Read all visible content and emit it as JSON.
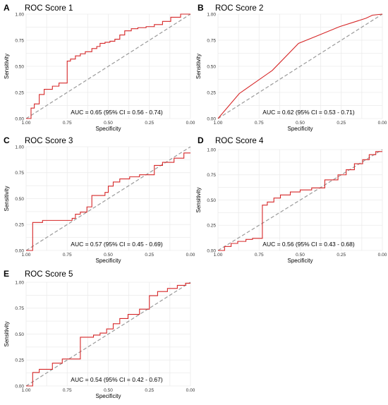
{
  "colors": {
    "roc": "#d62728",
    "diagonal": "#9a9a9a",
    "grid": "#ebebeb"
  },
  "chart_data": [
    {
      "type": "line",
      "letter": "A",
      "title": "ROC Score 1",
      "xlabel": "Specificity",
      "ylabel": "Sensitivity",
      "xlim": [
        1.0,
        0.0
      ],
      "ylim": [
        0.0,
        1.0
      ],
      "xticks": [
        "1.00",
        "0.75",
        "0.50",
        "0.25",
        "0.00"
      ],
      "yticks": [
        "0.00",
        "0.25",
        "0.50",
        "0.75",
        "1.00"
      ],
      "annotation": "AUC = 0.65 (95% CI = 0.56 - 0.74)",
      "grid": true,
      "diagonal": true,
      "curve_style": "step",
      "specificity": [
        1.0,
        0.97,
        0.97,
        0.95,
        0.95,
        0.92,
        0.92,
        0.89,
        0.89,
        0.84,
        0.84,
        0.8,
        0.8,
        0.75,
        0.75,
        0.73,
        0.73,
        0.7,
        0.7,
        0.67,
        0.67,
        0.64,
        0.64,
        0.6,
        0.6,
        0.57,
        0.57,
        0.55,
        0.55,
        0.52,
        0.52,
        0.49,
        0.49,
        0.46,
        0.46,
        0.43,
        0.43,
        0.4,
        0.4,
        0.36,
        0.36,
        0.32,
        0.32,
        0.27,
        0.27,
        0.22,
        0.22,
        0.17,
        0.17,
        0.12,
        0.12,
        0.06,
        0.06,
        0.0
      ],
      "sensitivity": [
        0.0,
        0.0,
        0.1,
        0.1,
        0.14,
        0.14,
        0.23,
        0.23,
        0.28,
        0.28,
        0.31,
        0.31,
        0.34,
        0.34,
        0.55,
        0.55,
        0.57,
        0.57,
        0.6,
        0.6,
        0.62,
        0.62,
        0.64,
        0.64,
        0.67,
        0.67,
        0.69,
        0.69,
        0.72,
        0.72,
        0.73,
        0.73,
        0.74,
        0.74,
        0.76,
        0.76,
        0.8,
        0.8,
        0.84,
        0.84,
        0.86,
        0.86,
        0.87,
        0.87,
        0.88,
        0.88,
        0.9,
        0.9,
        0.93,
        0.93,
        0.97,
        0.97,
        1.0,
        1.0
      ]
    },
    {
      "type": "line",
      "letter": "B",
      "title": "ROC Score 2",
      "xlabel": "Specificity",
      "ylabel": "Sensitivity",
      "xlim": [
        1.0,
        0.0
      ],
      "ylim": [
        0.0,
        1.0
      ],
      "xticks": [
        "1.00",
        "0.75",
        "0.50",
        "0.25",
        "0.00"
      ],
      "yticks": [
        "0.00",
        "0.25",
        "0.50",
        "0.75",
        "1.00"
      ],
      "annotation": "AUC = 0.62 (95% CI = 0.53 - 0.71)",
      "grid": true,
      "diagonal": true,
      "curve_style": "smooth",
      "specificity": [
        1.0,
        0.87,
        0.67,
        0.51,
        0.4,
        0.26,
        0.1,
        0.06,
        0.0
      ],
      "sensitivity": [
        0.0,
        0.24,
        0.46,
        0.72,
        0.79,
        0.88,
        0.96,
        0.99,
        1.0
      ]
    },
    {
      "type": "line",
      "letter": "C",
      "title": "ROC Score 3",
      "xlabel": "Specificity",
      "ylabel": "Sensitivity",
      "xlim": [
        1.0,
        0.0
      ],
      "ylim": [
        0.0,
        1.0
      ],
      "xticks": [
        "1.00",
        "0.75",
        "0.50",
        "0.25",
        "0.00"
      ],
      "yticks": [
        "0.00",
        "0.25",
        "0.50",
        "0.75",
        "1.00"
      ],
      "annotation": "AUC = 0.57 (95% CI = 0.45 - 0.69)",
      "grid": true,
      "diagonal": true,
      "curve_style": "step",
      "specificity": [
        1.0,
        0.96,
        0.96,
        0.9,
        0.9,
        0.72,
        0.72,
        0.7,
        0.7,
        0.67,
        0.67,
        0.63,
        0.63,
        0.6,
        0.6,
        0.52,
        0.52,
        0.5,
        0.5,
        0.47,
        0.47,
        0.43,
        0.43,
        0.37,
        0.37,
        0.31,
        0.31,
        0.22,
        0.22,
        0.17,
        0.17,
        0.1,
        0.1,
        0.04,
        0.04,
        0.0
      ],
      "sensitivity": [
        0.0,
        0.0,
        0.27,
        0.27,
        0.29,
        0.29,
        0.31,
        0.31,
        0.35,
        0.35,
        0.37,
        0.37,
        0.42,
        0.42,
        0.53,
        0.53,
        0.56,
        0.56,
        0.62,
        0.62,
        0.66,
        0.66,
        0.69,
        0.69,
        0.71,
        0.71,
        0.73,
        0.73,
        0.82,
        0.82,
        0.85,
        0.85,
        0.89,
        0.89,
        0.94,
        0.94
      ]
    },
    {
      "type": "line",
      "letter": "D",
      "title": "ROC Score 4",
      "xlabel": "Specificity",
      "ylabel": "Sensitivity",
      "xlim": [
        1.0,
        0.0
      ],
      "ylim": [
        0.0,
        1.0
      ],
      "xticks": [
        "1.00",
        "0.75",
        "0.50",
        "0.25",
        "0.00"
      ],
      "yticks": [
        "0.00",
        "0.25",
        "0.50",
        "0.75",
        "1.00"
      ],
      "annotation": "AUC = 0.56 (95% CI = 0.43 - 0.68)",
      "grid": true,
      "diagonal": true,
      "curve_style": "step",
      "specificity": [
        1.0,
        0.96,
        0.96,
        0.92,
        0.92,
        0.88,
        0.88,
        0.83,
        0.83,
        0.79,
        0.79,
        0.73,
        0.73,
        0.7,
        0.7,
        0.66,
        0.66,
        0.62,
        0.62,
        0.56,
        0.56,
        0.5,
        0.5,
        0.43,
        0.43,
        0.35,
        0.35,
        0.27,
        0.27,
        0.22,
        0.22,
        0.17,
        0.17,
        0.12,
        0.12,
        0.08,
        0.08,
        0.04,
        0.04,
        0.0
      ],
      "sensitivity": [
        0.0,
        0.0,
        0.04,
        0.04,
        0.07,
        0.07,
        0.09,
        0.09,
        0.11,
        0.11,
        0.12,
        0.12,
        0.45,
        0.45,
        0.48,
        0.48,
        0.52,
        0.52,
        0.55,
        0.55,
        0.58,
        0.58,
        0.6,
        0.6,
        0.62,
        0.62,
        0.7,
        0.7,
        0.75,
        0.75,
        0.8,
        0.8,
        0.86,
        0.86,
        0.9,
        0.9,
        0.95,
        0.95,
        0.98,
        0.98
      ]
    },
    {
      "type": "line",
      "letter": "E",
      "title": "ROC Score 5",
      "xlabel": "Specificity",
      "ylabel": "Sensitivity",
      "xlim": [
        1.0,
        0.0
      ],
      "ylim": [
        0.0,
        1.0
      ],
      "xticks": [
        "1.00",
        "0.75",
        "0.50",
        "0.25",
        "0.00"
      ],
      "yticks": [
        "0.00",
        "0.25",
        "0.50",
        "0.75",
        "1.00"
      ],
      "annotation": "AUC = 0.54 (95% CI = 0.42 - 0.67)",
      "grid": true,
      "diagonal": true,
      "curve_style": "step",
      "specificity": [
        1.0,
        0.96,
        0.96,
        0.92,
        0.92,
        0.84,
        0.84,
        0.78,
        0.78,
        0.67,
        0.67,
        0.59,
        0.59,
        0.55,
        0.55,
        0.51,
        0.51,
        0.47,
        0.47,
        0.43,
        0.43,
        0.38,
        0.38,
        0.31,
        0.31,
        0.25,
        0.25,
        0.2,
        0.2,
        0.14,
        0.14,
        0.08,
        0.08,
        0.03,
        0.03,
        0.0
      ],
      "sensitivity": [
        0.0,
        0.0,
        0.13,
        0.13,
        0.16,
        0.16,
        0.22,
        0.22,
        0.26,
        0.26,
        0.47,
        0.47,
        0.49,
        0.49,
        0.51,
        0.51,
        0.55,
        0.55,
        0.6,
        0.6,
        0.65,
        0.65,
        0.69,
        0.69,
        0.74,
        0.74,
        0.87,
        0.87,
        0.91,
        0.91,
        0.94,
        0.94,
        0.97,
        0.97,
        0.99,
        0.99
      ]
    }
  ]
}
